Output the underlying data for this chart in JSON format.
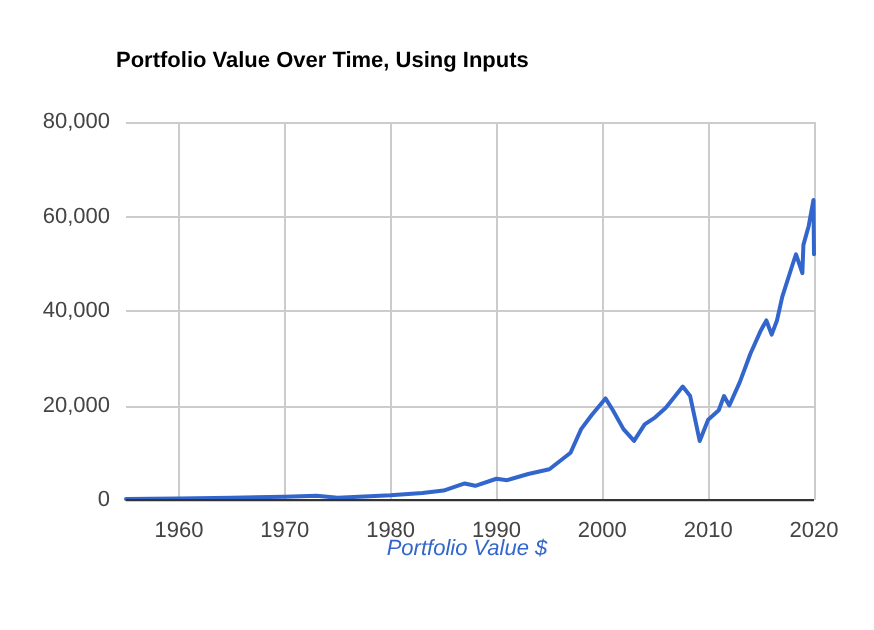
{
  "chart_data": {
    "type": "line",
    "title": "Portfolio Value Over Time, Using Inputs",
    "xlim": [
      1955,
      2020
    ],
    "xticks": [
      1960,
      1970,
      1980,
      1990,
      2000,
      2010,
      2020
    ],
    "ylim": [
      0,
      80000
    ],
    "yticks": [
      {
        "value": 0,
        "label": "0"
      },
      {
        "value": 20000,
        "label": "20,000"
      },
      {
        "value": 40000,
        "label": "40,000"
      },
      {
        "value": 60000,
        "label": "60,000"
      },
      {
        "value": 80000,
        "label": "80,000"
      }
    ],
    "grid": true,
    "legend": "bottom",
    "marker": "none",
    "line_style": "solid",
    "series": [
      {
        "name": "Portfolio Value $",
        "color": "#3366cc",
        "x": [
          1955,
          1960,
          1965,
          1970,
          1973,
          1975,
          1980,
          1983,
          1985,
          1987,
          1988,
          1990,
          1991,
          1993,
          1995,
          1997,
          1998,
          1999,
          2000.3,
          2001,
          2002,
          2003,
          2004,
          2005,
          2006,
          2007.6,
          2008.3,
          2009.2,
          2010,
          2011,
          2011.5,
          2012,
          2013,
          2014,
          2015,
          2015.5,
          2016,
          2016.5,
          2017,
          2018,
          2018.3,
          2018.9,
          2019,
          2019.5,
          2019.95,
          2020
        ],
        "values": [
          200,
          300,
          500,
          700,
          900,
          500,
          1000,
          1500,
          2000,
          3500,
          3000,
          4500,
          4200,
          5500,
          6500,
          10000,
          15000,
          18000,
          21500,
          19000,
          15000,
          12500,
          16000,
          17500,
          19500,
          24000,
          22000,
          12500,
          17000,
          19000,
          22000,
          20000,
          25000,
          31000,
          36000,
          38000,
          35000,
          38000,
          43000,
          50000,
          52000,
          48000,
          54000,
          58000,
          63500,
          52000
        ]
      }
    ]
  }
}
